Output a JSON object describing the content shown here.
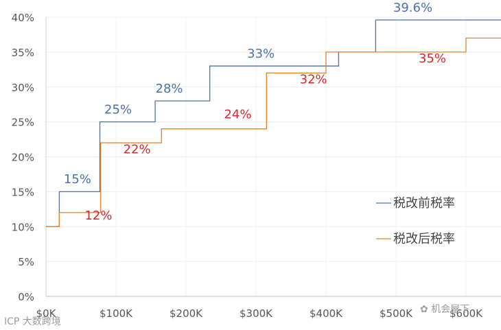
{
  "chart_data": {
    "type": "line",
    "step": true,
    "title": "",
    "xlabel": "",
    "ylabel": "",
    "xlim": [
      0,
      650000
    ],
    "ylim": [
      0,
      40
    ],
    "x_ticks": [
      "$0K",
      "$100K",
      "$200K",
      "$300K",
      "$400K",
      "$500K",
      "$600K"
    ],
    "x_tick_values": [
      0,
      100000,
      200000,
      300000,
      400000,
      500000,
      600000
    ],
    "y_ticks": [
      "0%",
      "5%",
      "10%",
      "15%",
      "20%",
      "25%",
      "30%",
      "35%",
      "40%"
    ],
    "y_tick_values": [
      0,
      5,
      10,
      15,
      20,
      25,
      30,
      35,
      40
    ],
    "grid": true,
    "legend_position": "right",
    "series": [
      {
        "name": "税改前税率",
        "color": "#4a72a8",
        "x": [
          19000,
          77000,
          156000,
          234000,
          418000,
          471000,
          650000
        ],
        "y": [
          15,
          25,
          28,
          33,
          35,
          39.6,
          39.6
        ],
        "x_start": 19000,
        "y_start": 10
      },
      {
        "name": "税改后税率",
        "color": "#e0812e",
        "x": [
          19000,
          78000,
          165000,
          315000,
          400000,
          600000,
          650000
        ],
        "y": [
          12,
          22,
          24,
          32,
          35,
          37,
          37
        ],
        "x_start": 0,
        "y_start": 10
      }
    ],
    "annotations": [
      {
        "text": "15%",
        "series": 0,
        "x": 45000,
        "y": 16.2
      },
      {
        "text": "25%",
        "series": 0,
        "x": 103000,
        "y": 26.2
      },
      {
        "text": "28%",
        "series": 0,
        "x": 176000,
        "y": 29.2
      },
      {
        "text": "33%",
        "series": 0,
        "x": 307000,
        "y": 34.2
      },
      {
        "text": "39.6%",
        "series": 0,
        "x": 524000,
        "y": 40.8
      },
      {
        "text": "12%",
        "series": 1,
        "x": 75000,
        "y": 11
      },
      {
        "text": "22%",
        "series": 1,
        "x": 130000,
        "y": 20.5
      },
      {
        "text": "24%",
        "series": 1,
        "x": 274000,
        "y": 25.5
      },
      {
        "text": "32%",
        "series": 1,
        "x": 382000,
        "y": 30.5
      },
      {
        "text": "35%",
        "series": 1,
        "x": 552000,
        "y": 33.5
      }
    ]
  },
  "watermark": {
    "left_text": "ICP 大数跨境",
    "right_text": "机会屋下"
  }
}
